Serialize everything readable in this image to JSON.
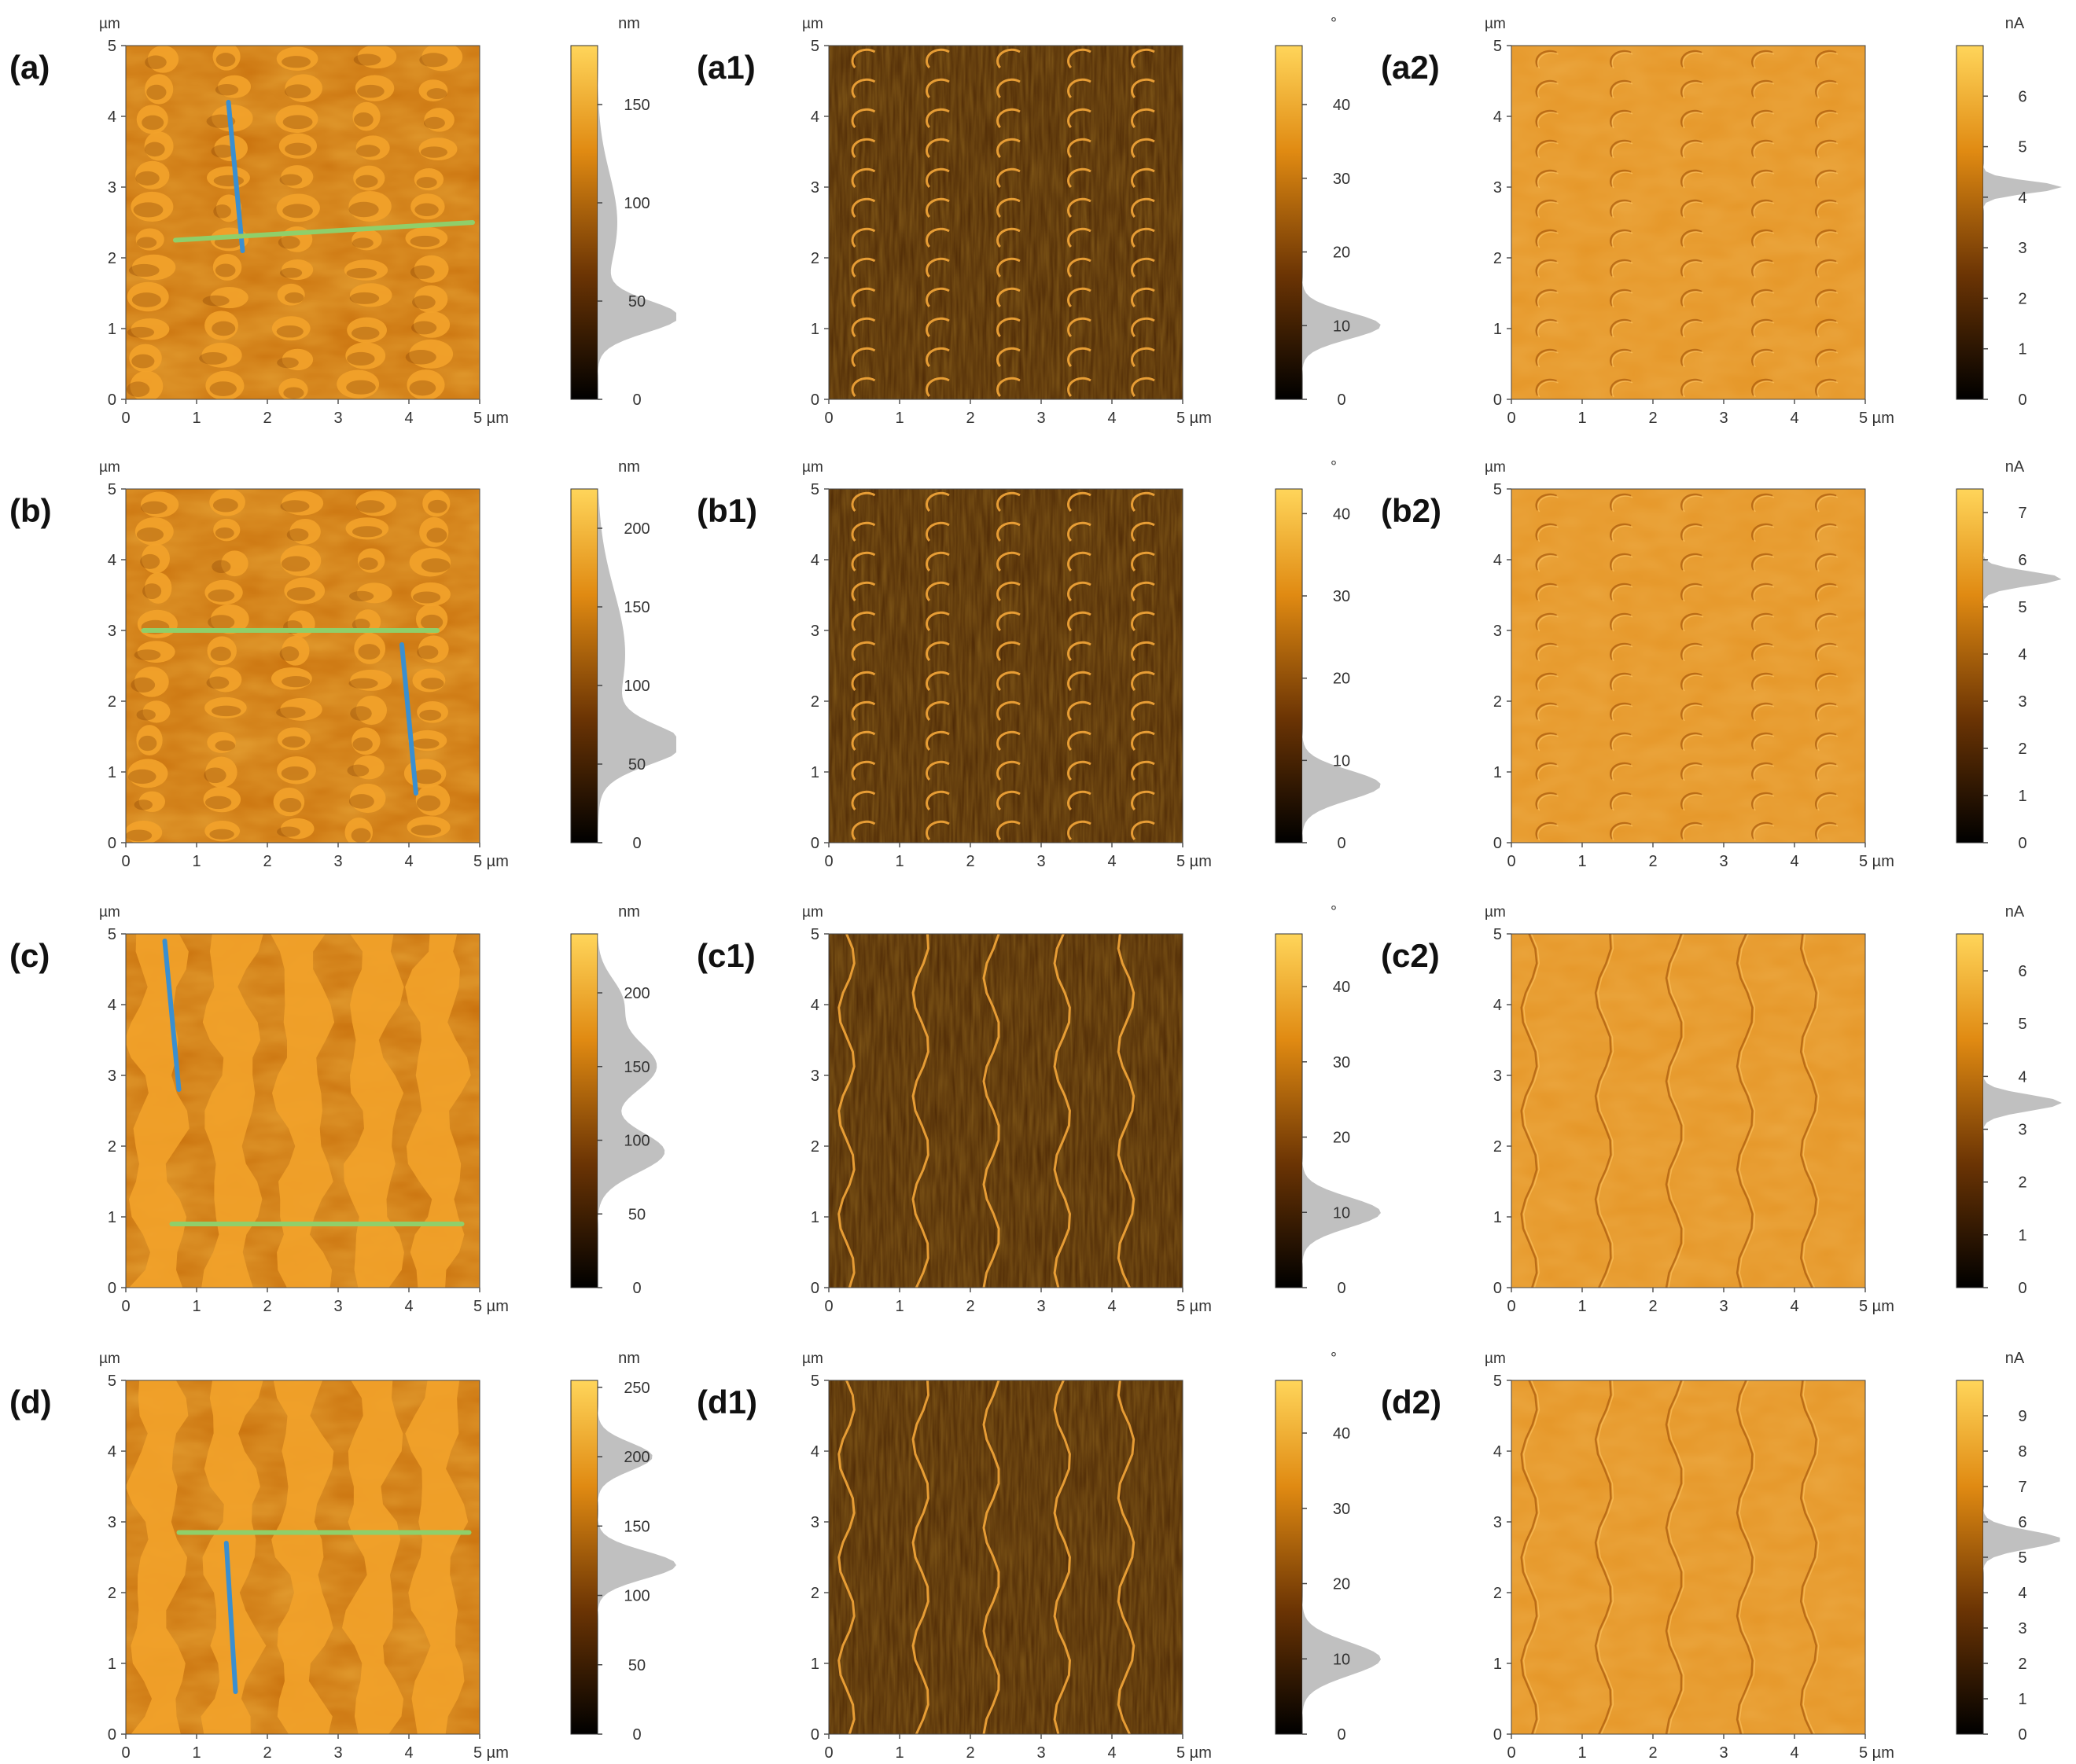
{
  "figure": {
    "rows": [
      {
        "panels": [
          {
            "label": "(a)",
            "kind": "height",
            "unit": "nm",
            "cticks": [
              "0",
              "50",
              "100",
              "150"
            ],
            "cmax": 180,
            "hist_peaks": [
              [
                42,
                1.0,
                8
              ],
              [
                90,
                0.25,
                25
              ]
            ],
            "lines": [
              {
                "color": "#3a8fd0",
                "from": [
                  1.45,
                  4.2
                ],
                "to": [
                  1.65,
                  2.1
                ]
              },
              {
                "color": "#8fcf6a",
                "from": [
                  0.7,
                  2.25
                ],
                "to": [
                  4.9,
                  2.5
                ]
              }
            ]
          },
          {
            "label": "(a1)",
            "kind": "phase",
            "unit": "°",
            "cticks": [
              "0",
              "10",
              "20",
              "30",
              "40"
            ],
            "cmax": 48,
            "hist_peaks": [
              [
                10,
                1.0,
                1.8
              ]
            ]
          },
          {
            "label": "(a2)",
            "kind": "current",
            "unit": "nA",
            "cticks": [
              "0",
              "1",
              "2",
              "3",
              "4",
              "5",
              "6"
            ],
            "cmax": 7,
            "hist_peaks": [
              [
                4.2,
                1.0,
                0.12
              ]
            ]
          }
        ]
      },
      {
        "panels": [
          {
            "label": "(b)",
            "kind": "height",
            "unit": "nm",
            "cticks": [
              "0",
              "50",
              "100",
              "150",
              "200"
            ],
            "cmax": 225,
            "hist_peaks": [
              [
                62,
                1.0,
                12
              ],
              [
                120,
                0.35,
                40
              ]
            ],
            "lines": [
              {
                "color": "#3a8fd0",
                "from": [
                  3.9,
                  2.8
                ],
                "to": [
                  4.1,
                  0.7
                ]
              },
              {
                "color": "#8fcf6a",
                "from": [
                  0.25,
                  3.0
                ],
                "to": [
                  4.4,
                  3.0
                ]
              }
            ]
          },
          {
            "label": "(b1)",
            "kind": "phase",
            "unit": "°",
            "cticks": [
              "0",
              "10",
              "20",
              "30",
              "40"
            ],
            "cmax": 43,
            "hist_peaks": [
              [
                7,
                1.0,
                1.8
              ]
            ]
          },
          {
            "label": "(b2)",
            "kind": "current",
            "unit": "nA",
            "cticks": [
              "0",
              "1",
              "2",
              "3",
              "4",
              "5",
              "6",
              "7"
            ],
            "cmax": 7.5,
            "hist_peaks": [
              [
                5.6,
                1.0,
                0.15
              ]
            ]
          }
        ]
      },
      {
        "panels": [
          {
            "label": "(c)",
            "kind": "height",
            "unit": "nm",
            "cticks": [
              "0",
              "50",
              "100",
              "150",
              "200"
            ],
            "cmax": 240,
            "hist_peaks": [
              [
                92,
                0.85,
                14
              ],
              [
                150,
                0.75,
                18
              ],
              [
                195,
                0.3,
                15
              ]
            ],
            "lines": [
              {
                "color": "#3a8fd0",
                "from": [
                  0.55,
                  4.9
                ],
                "to": [
                  0.75,
                  2.8
                ]
              },
              {
                "color": "#8fcf6a",
                "from": [
                  0.65,
                  0.9
                ],
                "to": [
                  4.75,
                  0.9
                ]
              }
            ]
          },
          {
            "label": "(c1)",
            "kind": "phase",
            "unit": "°",
            "cticks": [
              "0",
              "10",
              "20",
              "30",
              "40"
            ],
            "cmax": 47,
            "hist_peaks": [
              [
                10,
                1.0,
                2.0
              ]
            ]
          },
          {
            "label": "(c2)",
            "kind": "current",
            "unit": "nA",
            "cticks": [
              "0",
              "1",
              "2",
              "3",
              "4",
              "5",
              "6"
            ],
            "cmax": 6.7,
            "hist_peaks": [
              [
                3.5,
                1.0,
                0.15
              ]
            ]
          }
        ]
      },
      {
        "panels": [
          {
            "label": "(d)",
            "kind": "height",
            "unit": "nm",
            "cticks": [
              "0",
              "50",
              "100",
              "150",
              "200",
              "250"
            ],
            "cmax": 255,
            "hist_peaks": [
              [
                122,
                1.0,
                10
              ],
              [
                200,
                0.7,
                10
              ]
            ],
            "lines": [
              {
                "color": "#3a8fd0",
                "from": [
                  1.42,
                  2.7
                ],
                "to": [
                  1.55,
                  0.6
                ]
              },
              {
                "color": "#8fcf6a",
                "from": [
                  0.75,
                  2.85
                ],
                "to": [
                  4.85,
                  2.85
                ]
              }
            ]
          },
          {
            "label": "(d1)",
            "kind": "phase",
            "unit": "°",
            "cticks": [
              "0",
              "10",
              "20",
              "30",
              "40"
            ],
            "cmax": 47,
            "hist_peaks": [
              [
                10,
                1.0,
                2.2
              ]
            ]
          },
          {
            "label": "(d2)",
            "kind": "current",
            "unit": "nA",
            "cticks": [
              "0",
              "1",
              "2",
              "3",
              "4",
              "5",
              "6",
              "7",
              "8",
              "9"
            ],
            "cmax": 10,
            "hist_peaks": [
              [
                5.5,
                1.0,
                0.25
              ]
            ]
          }
        ]
      }
    ],
    "axis": {
      "y_unit": "µm",
      "x_unit_last": "5 µm",
      "y_ticks": [
        "0",
        "1",
        "2",
        "3",
        "4",
        "5"
      ],
      "x_ticks": [
        "0",
        "1",
        "2",
        "3",
        "4"
      ],
      "range": [
        0,
        5
      ]
    },
    "colors": {
      "height_base": "#c86f0b",
      "height_ridge": "#f2a22a",
      "phase_base": "#4a2604",
      "phase_edge": "#f5a73a",
      "current_base": "#e59526",
      "current_shadow": "#a8590c",
      "current_light": "#fbc15e",
      "histogram": "#bdbdbd"
    }
  }
}
